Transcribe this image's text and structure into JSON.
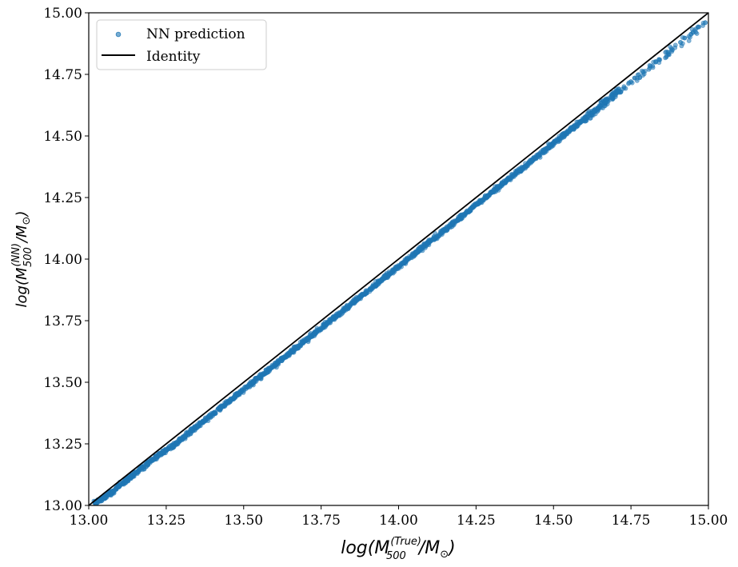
{
  "chart_data": {
    "type": "scatter",
    "title": "",
    "xlabel": {
      "base": "log(M",
      "sub": "500",
      "sup": "(True)",
      "tail": "/M",
      "odot": "⊙",
      "close": ")"
    },
    "ylabel": {
      "base": "log(M",
      "sub": "500",
      "sup": "(NN)",
      "tail": "/M",
      "odot": "⊙",
      "close": ")"
    },
    "xlim": [
      13.0,
      15.0
    ],
    "ylim": [
      13.0,
      15.0
    ],
    "xticks": [
      "13.00",
      "13.25",
      "13.50",
      "13.75",
      "14.00",
      "14.25",
      "14.50",
      "14.75",
      "15.00"
    ],
    "yticks": [
      "13.00",
      "13.25",
      "13.50",
      "13.75",
      "14.00",
      "14.25",
      "14.50",
      "14.75",
      "15.00"
    ],
    "grid": false,
    "legend_position": "top-left",
    "series": [
      {
        "name": "NN prediction",
        "kind": "scatter",
        "color": "#1f77b4",
        "relation": "y ≈ 0.985·x + 0.17 (slightly below identity)",
        "x": [
          13.02,
          13.05,
          13.08,
          13.12,
          13.15,
          13.19,
          13.23,
          13.27,
          13.31,
          13.35,
          13.39,
          13.43,
          13.47,
          13.51,
          13.55,
          13.59,
          13.63,
          13.67,
          13.71,
          13.75,
          13.79,
          13.83,
          13.87,
          13.91,
          13.95,
          13.99,
          14.03,
          14.07,
          14.11,
          14.15,
          14.19,
          14.23,
          14.27,
          14.31,
          14.35,
          14.39,
          14.43,
          14.47,
          14.51,
          14.55,
          14.59,
          14.63,
          14.67,
          14.71,
          14.75,
          14.79,
          14.83,
          14.87,
          14.91,
          14.95,
          14.99
        ],
        "y": [
          13.01,
          13.03,
          13.06,
          13.1,
          13.13,
          13.17,
          13.21,
          13.24,
          13.28,
          13.32,
          13.36,
          13.4,
          13.44,
          13.48,
          13.52,
          13.56,
          13.6,
          13.64,
          13.68,
          13.72,
          13.76,
          13.8,
          13.84,
          13.88,
          13.92,
          13.96,
          14.0,
          14.04,
          14.08,
          14.12,
          14.16,
          14.2,
          14.24,
          14.28,
          14.32,
          14.36,
          14.4,
          14.44,
          14.48,
          14.52,
          14.56,
          14.6,
          14.64,
          14.68,
          14.72,
          14.76,
          14.8,
          14.84,
          14.88,
          14.92,
          14.96
        ]
      },
      {
        "name": "Identity",
        "kind": "line",
        "color": "#000000",
        "x": [
          13.0,
          15.0
        ],
        "y": [
          13.0,
          15.0
        ]
      }
    ]
  }
}
